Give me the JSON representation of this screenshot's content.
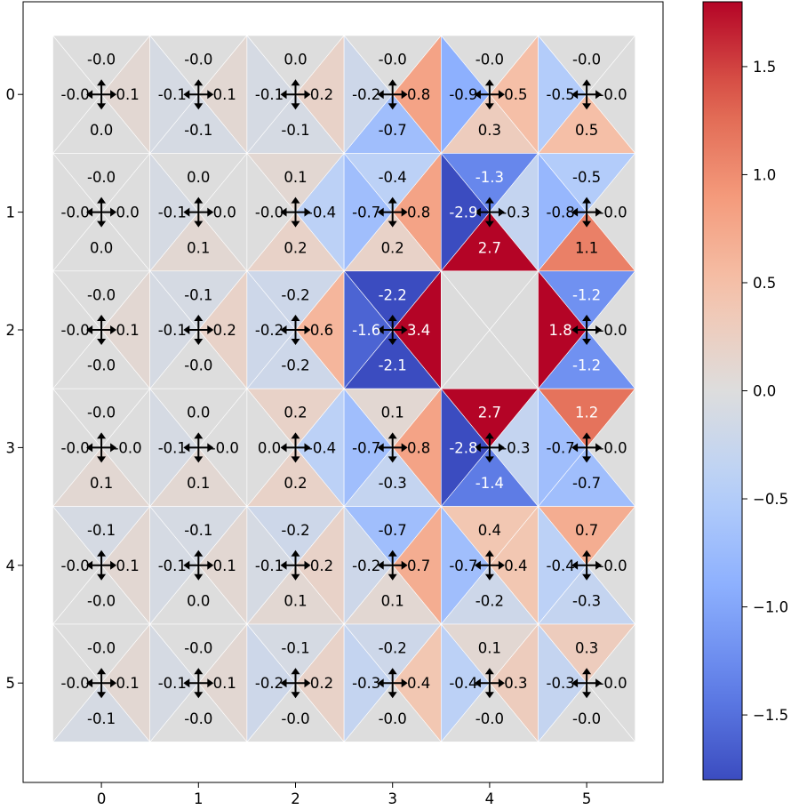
{
  "chart_data": {
    "type": "heatmap",
    "title": "",
    "xlabel": "",
    "ylabel": "",
    "x_ticks": [
      "0",
      "1",
      "2",
      "3",
      "4",
      "5"
    ],
    "y_ticks": [
      "0",
      "1",
      "2",
      "3",
      "4",
      "5"
    ],
    "colormap": "coolwarm",
    "vmin": -1.8,
    "vmax": 1.8,
    "colorbar_ticks": [
      "1.5",
      "1.0",
      "0.5",
      "0.0",
      "−0.5",
      "−1.0",
      "−1.5"
    ],
    "colorbar_tick_values": [
      1.5,
      1.0,
      0.5,
      0.0,
      -0.5,
      -1.0,
      -1.5
    ],
    "cell_order": [
      "top",
      "right",
      "bottom",
      "left"
    ],
    "cells": [
      [
        {
          "top": "-0.0",
          "right": "0.1",
          "bottom": "0.0",
          "left": "-0.0"
        },
        {
          "top": "-0.0",
          "right": "0.1",
          "bottom": "-0.1",
          "left": "-0.1"
        },
        {
          "top": "0.0",
          "right": "0.2",
          "bottom": "-0.1",
          "left": "-0.1"
        },
        {
          "top": "-0.0",
          "right": "0.8",
          "bottom": "-0.7",
          "left": "-0.2"
        },
        {
          "top": "-0.0",
          "right": "0.5",
          "bottom": "0.3",
          "left": "-0.9"
        },
        {
          "top": "-0.0",
          "right": "-0.0",
          "bottom": "0.5",
          "left": "-0.5"
        }
      ],
      [
        {
          "top": "-0.0",
          "right": "0.0",
          "bottom": "0.0",
          "left": "-0.0"
        },
        {
          "top": "0.0",
          "right": "0.0",
          "bottom": "0.1",
          "left": "-0.1"
        },
        {
          "top": "0.1",
          "right": "-0.4",
          "bottom": "0.2",
          "left": "-0.0"
        },
        {
          "top": "-0.4",
          "right": "0.8",
          "bottom": "0.2",
          "left": "-0.7"
        },
        {
          "top": "-1.3",
          "right": "-0.3",
          "bottom": "2.7",
          "left": "-2.9"
        },
        {
          "top": "-0.5",
          "right": "-0.0",
          "bottom": "1.1",
          "left": "-0.8"
        }
      ],
      [
        {
          "top": "-0.0",
          "right": "0.1",
          "bottom": "-0.0",
          "left": "-0.0"
        },
        {
          "top": "-0.1",
          "right": "0.2",
          "bottom": "-0.0",
          "left": "-0.1"
        },
        {
          "top": "-0.2",
          "right": "0.6",
          "bottom": "-0.2",
          "left": "-0.2"
        },
        {
          "top": "-2.2",
          "right": "3.4",
          "bottom": "-2.1",
          "left": "-1.6"
        },
        null,
        {
          "top": "-1.2",
          "right": "-0.0",
          "bottom": "-1.2",
          "left": "1.8"
        }
      ],
      [
        {
          "top": "-0.0",
          "right": "-0.0",
          "bottom": "0.1",
          "left": "-0.0"
        },
        {
          "top": "0.0",
          "right": "-0.0",
          "bottom": "0.1",
          "left": "-0.1"
        },
        {
          "top": "0.2",
          "right": "-0.4",
          "bottom": "0.2",
          "left": "0.0"
        },
        {
          "top": "0.1",
          "right": "0.8",
          "bottom": "-0.3",
          "left": "-0.7"
        },
        {
          "top": "2.7",
          "right": "-0.3",
          "bottom": "-1.4",
          "left": "-2.8"
        },
        {
          "top": "1.2",
          "right": "-0.0",
          "bottom": "-0.7",
          "left": "-0.7"
        }
      ],
      [
        {
          "top": "-0.1",
          "right": "0.1",
          "bottom": "-0.0",
          "left": "-0.0"
        },
        {
          "top": "-0.1",
          "right": "0.1",
          "bottom": "0.0",
          "left": "-0.1"
        },
        {
          "top": "-0.2",
          "right": "0.2",
          "bottom": "0.1",
          "left": "-0.1"
        },
        {
          "top": "-0.7",
          "right": "0.7",
          "bottom": "0.1",
          "left": "-0.2"
        },
        {
          "top": "0.4",
          "right": "0.4",
          "bottom": "-0.2",
          "left": "-0.7"
        },
        {
          "top": "0.7",
          "right": "-0.0",
          "bottom": "-0.3",
          "left": "-0.4"
        }
      ],
      [
        {
          "top": "-0.0",
          "right": "0.1",
          "bottom": "-0.1",
          "left": "-0.0"
        },
        {
          "top": "-0.0",
          "right": "0.1",
          "bottom": "-0.0",
          "left": "-0.1"
        },
        {
          "top": "-0.1",
          "right": "0.2",
          "bottom": "-0.0",
          "left": "-0.2"
        },
        {
          "top": "-0.2",
          "right": "0.4",
          "bottom": "-0.0",
          "left": "-0.3"
        },
        {
          "top": "0.1",
          "right": "0.3",
          "bottom": "-0.0",
          "left": "-0.4"
        },
        {
          "top": "0.3",
          "right": "-0.0",
          "bottom": "-0.0",
          "left": "-0.3"
        }
      ]
    ]
  }
}
